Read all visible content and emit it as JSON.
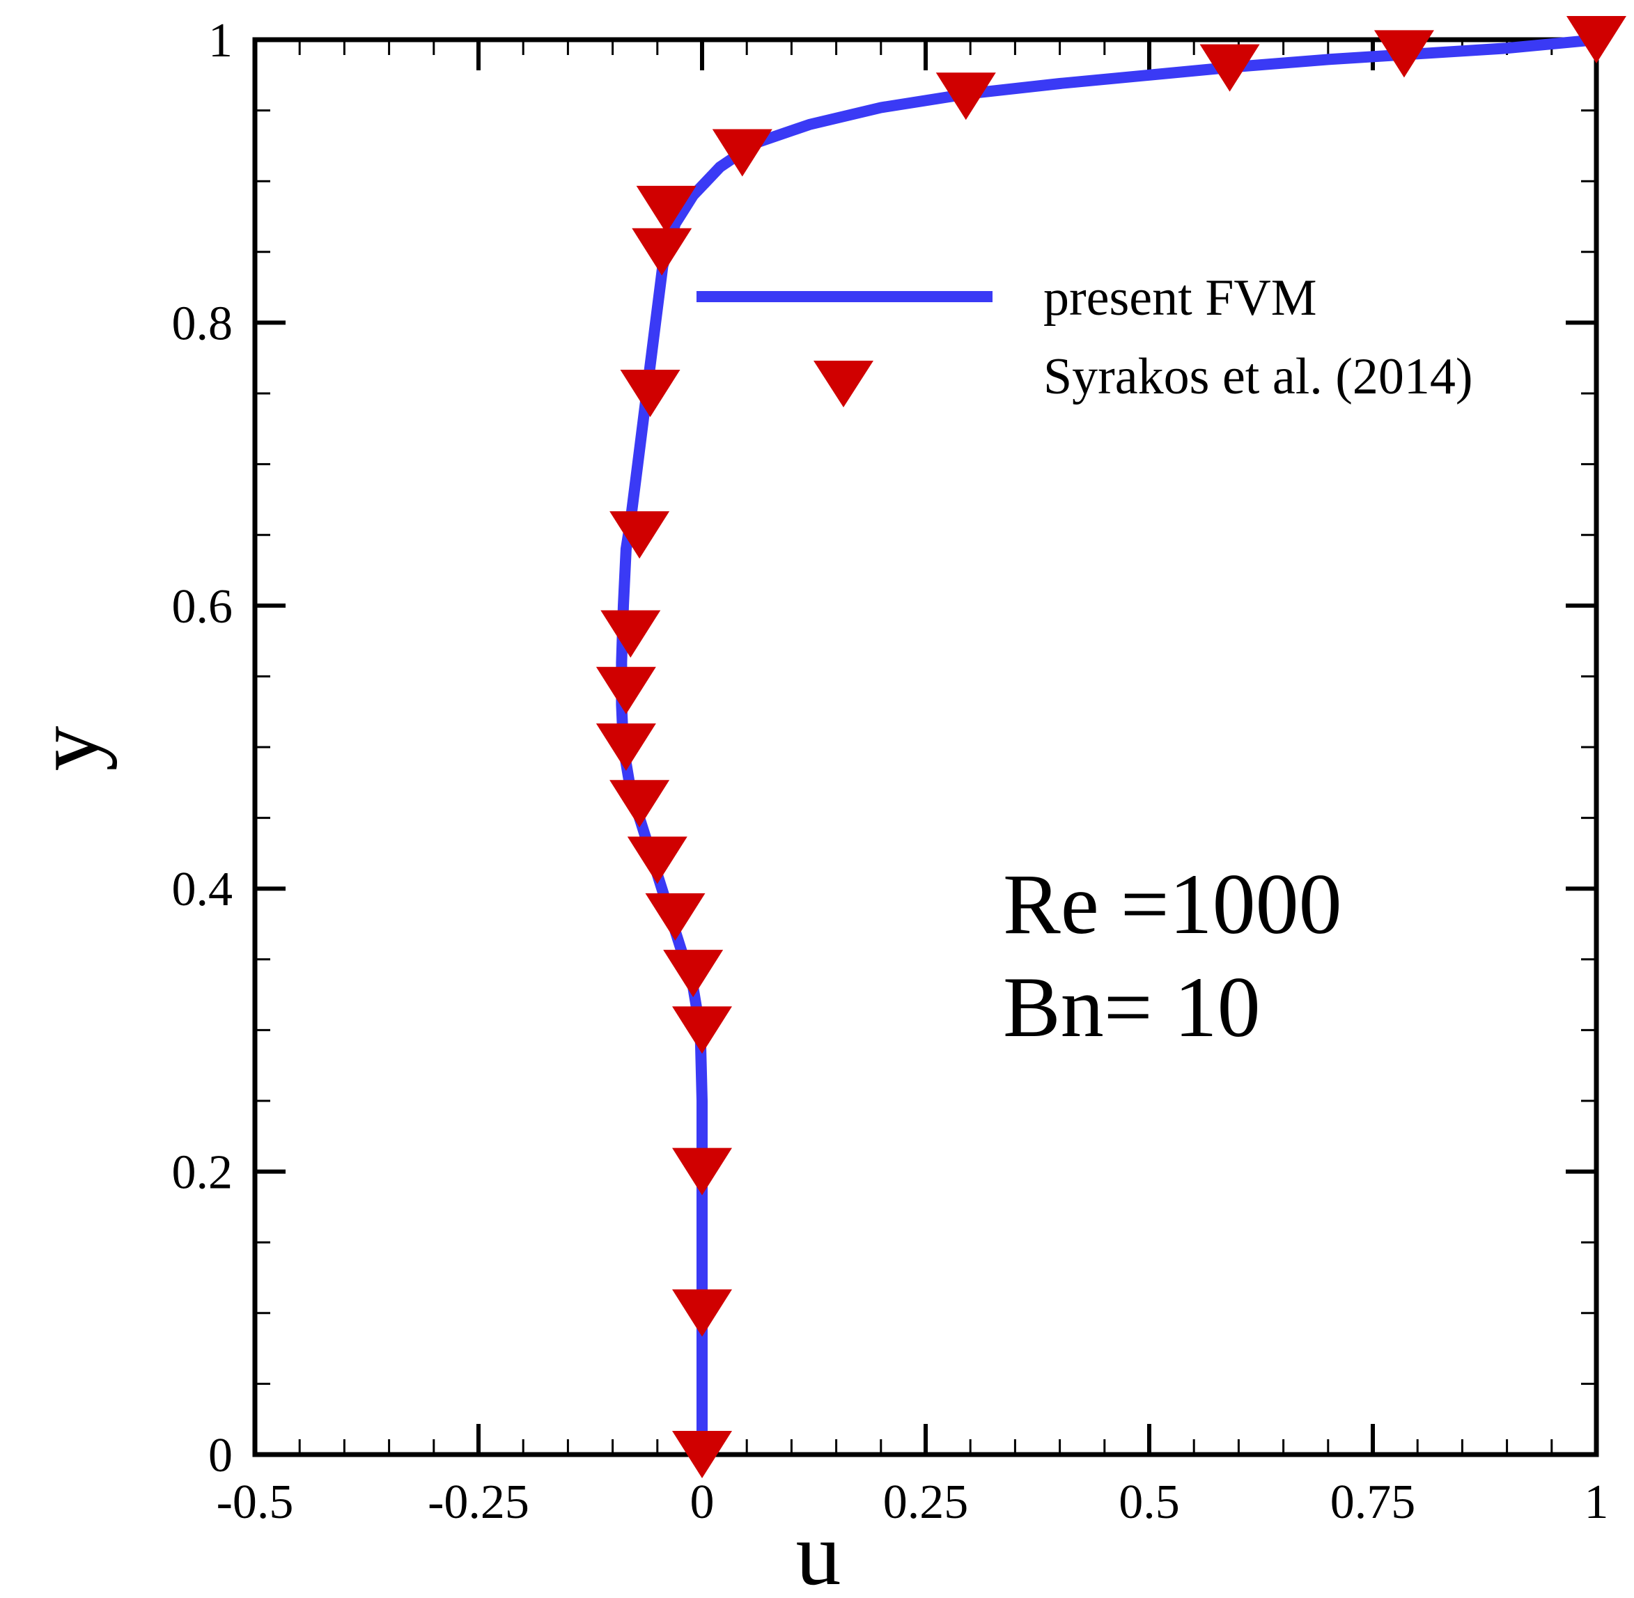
{
  "chart_data": {
    "type": "line",
    "title": "",
    "xlabel": "u",
    "ylabel": "y",
    "xlim": [
      -0.5,
      1
    ],
    "ylim": [
      0,
      1
    ],
    "x_ticks": [
      -0.5,
      -0.25,
      0,
      0.25,
      0.5,
      0.75,
      1
    ],
    "x_tick_labels": [
      "-0.5",
      "-0.25",
      "0",
      "0.25",
      "0.5",
      "0.75",
      "1"
    ],
    "y_ticks": [
      0,
      0.2,
      0.4,
      0.6,
      0.8,
      1
    ],
    "y_tick_labels": [
      "0",
      "0.2",
      "0.4",
      "0.6",
      "0.8",
      "1"
    ],
    "grid": false,
    "legend_position": "upper-right",
    "series": [
      {
        "name": "present FVM",
        "style": "line",
        "color": "#3a3af5",
        "points": [
          [
            0,
            0
          ],
          [
            0,
            0.05
          ],
          [
            0,
            0.1
          ],
          [
            0,
            0.15
          ],
          [
            0,
            0.2
          ],
          [
            0,
            0.25
          ],
          [
            -0.002,
            0.3
          ],
          [
            -0.01,
            0.33
          ],
          [
            -0.025,
            0.36
          ],
          [
            -0.04,
            0.39
          ],
          [
            -0.055,
            0.42
          ],
          [
            -0.07,
            0.45
          ],
          [
            -0.08,
            0.47
          ],
          [
            -0.088,
            0.5
          ],
          [
            -0.09,
            0.53
          ],
          [
            -0.09,
            0.56
          ],
          [
            -0.088,
            0.6
          ],
          [
            -0.085,
            0.64
          ],
          [
            -0.08,
            0.66
          ],
          [
            -0.072,
            0.7
          ],
          [
            -0.062,
            0.75
          ],
          [
            -0.052,
            0.8
          ],
          [
            -0.044,
            0.84
          ],
          [
            -0.03,
            0.87
          ],
          [
            -0.01,
            0.89
          ],
          [
            0.02,
            0.91
          ],
          [
            0.06,
            0.927
          ],
          [
            0.12,
            0.94
          ],
          [
            0.2,
            0.952
          ],
          [
            0.3,
            0.962
          ],
          [
            0.4,
            0.969
          ],
          [
            0.5,
            0.975
          ],
          [
            0.6,
            0.981
          ],
          [
            0.7,
            0.986
          ],
          [
            0.8,
            0.99
          ],
          [
            0.9,
            0.994
          ],
          [
            1.0,
            1.0
          ]
        ]
      },
      {
        "name": "Syrakos et al. (2014)",
        "style": "marker",
        "marker": "triangle-down",
        "color": "#d00000",
        "points": [
          [
            0,
            0
          ],
          [
            0,
            0.1
          ],
          [
            0,
            0.2
          ],
          [
            0,
            0.3
          ],
          [
            -0.01,
            0.34
          ],
          [
            -0.03,
            0.38
          ],
          [
            -0.05,
            0.42
          ],
          [
            -0.07,
            0.46
          ],
          [
            -0.085,
            0.5
          ],
          [
            -0.085,
            0.54
          ],
          [
            -0.08,
            0.58
          ],
          [
            -0.07,
            0.65
          ],
          [
            -0.058,
            0.75
          ],
          [
            -0.045,
            0.85
          ],
          [
            -0.04,
            0.88
          ],
          [
            0.045,
            0.92
          ],
          [
            0.295,
            0.96
          ],
          [
            0.59,
            0.98
          ],
          [
            0.785,
            0.99
          ],
          [
            1.0,
            1.0
          ]
        ]
      }
    ],
    "annotations": [
      "Re =1000",
      "Bn= 10"
    ]
  }
}
